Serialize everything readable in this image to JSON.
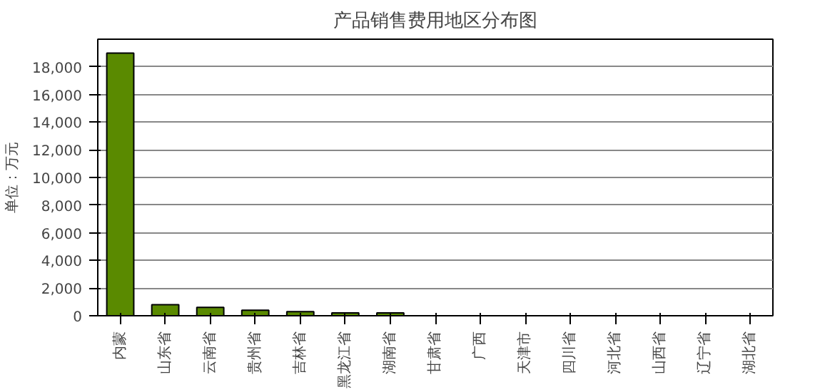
{
  "chart_data": {
    "type": "bar",
    "title": "产品销售费用地区分布图",
    "ylabel": "单位：万元",
    "categories": [
      "内蒙",
      "山东省",
      "云南省",
      "贵州省",
      "吉林省",
      "黑龙江省",
      "湖南省",
      "甘肃省",
      "广西",
      "天津市",
      "四川省",
      "河北省",
      "山西省",
      "辽宁省",
      "湖北省"
    ],
    "values": [
      19000,
      800,
      600,
      400,
      300,
      200,
      200,
      null,
      null,
      null,
      null,
      null,
      null,
      null,
      null
    ],
    "color": "#5a8a00",
    "ylim": [
      0,
      20000
    ],
    "yticks": [
      {
        "value": 0,
        "label": "0"
      },
      {
        "value": 2000,
        "label": "2,000"
      },
      {
        "value": 4000,
        "label": "4,000"
      },
      {
        "value": 6000,
        "label": "6,000"
      },
      {
        "value": 8000,
        "label": "8,000"
      },
      {
        "value": 10000,
        "label": "10,000"
      },
      {
        "value": 12000,
        "label": "12,000"
      },
      {
        "value": 14000,
        "label": "14,000"
      },
      {
        "value": 16000,
        "label": "16,000"
      },
      {
        "value": 18000,
        "label": "18,000"
      }
    ],
    "grid": "y"
  }
}
